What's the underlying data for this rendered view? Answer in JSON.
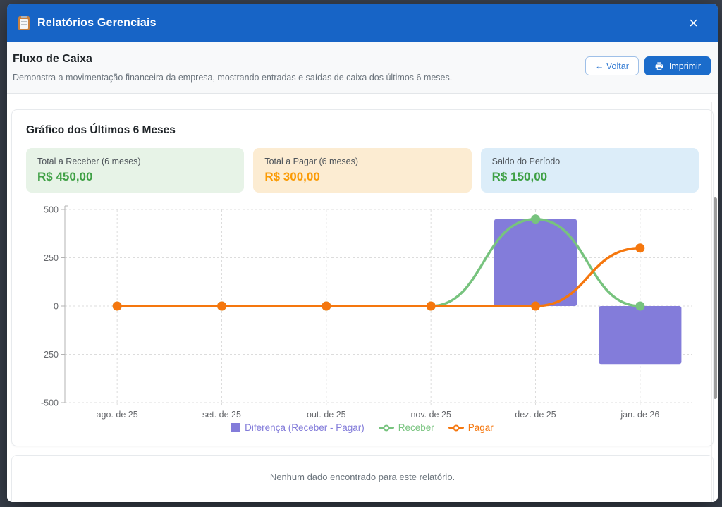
{
  "modal": {
    "title": "Relatórios Gerenciais",
    "close_label": "×"
  },
  "report": {
    "title": "Fluxo de Caixa",
    "description": "Demonstra a movimentação financeira da empresa, mostrando entradas e saídas de caixa dos últimos 6 meses.",
    "back_arrow": "←",
    "back_label": "Voltar",
    "print_label": "Imprimir"
  },
  "chart_section": {
    "heading": "Gráfico dos Últimos 6 Meses",
    "summary_cards": [
      {
        "label": "Total a Receber (6 meses)",
        "value": "R$ 450,00",
        "bg": "#e7f3e7",
        "value_color": "#3fa045"
      },
      {
        "label": "Total a Pagar (6 meses)",
        "value": "R$ 300,00",
        "bg": "#fcecd2",
        "value_color": "#fb9b04"
      },
      {
        "label": "Saldo do Período",
        "value": "R$ 150,00",
        "bg": "#dcedf9",
        "value_color": "#3fa045"
      }
    ]
  },
  "chart_data": {
    "type": "bar",
    "subtype": "combo-bar-line",
    "categories": [
      "ago. de 25",
      "set. de 25",
      "out. de 25",
      "nov. de 25",
      "dez. de 25",
      "jan. de 26"
    ],
    "series": [
      {
        "name": "Diferença (Receber - Pagar)",
        "type": "bar",
        "color": "#837cda",
        "values": [
          0,
          0,
          0,
          0,
          450,
          -300
        ]
      },
      {
        "name": "Receber",
        "type": "line",
        "color": "#77c37e",
        "values": [
          0,
          0,
          0,
          0,
          450,
          0
        ]
      },
      {
        "name": "Pagar",
        "type": "line",
        "color": "#f5770e",
        "values": [
          0,
          0,
          0,
          0,
          0,
          300
        ]
      }
    ],
    "ylim": [
      -500,
      500
    ],
    "yticks": [
      500,
      250,
      0,
      -250,
      -500
    ],
    "grid": true,
    "grid_style": "dashed",
    "legend_position": "bottom"
  },
  "empty_state": {
    "message": "Nenhum dado encontrado para este relatório."
  },
  "colors": {
    "header_blue": "#1764c6",
    "primary_button_blue": "#1b6ccb",
    "backdrop": "#3a414d"
  }
}
